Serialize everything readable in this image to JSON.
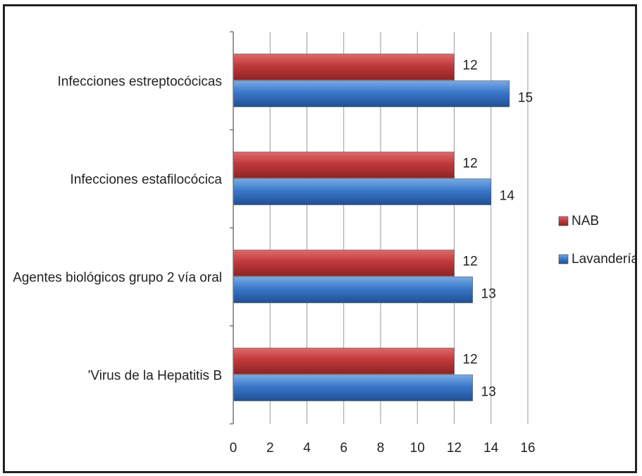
{
  "chart_data": {
    "type": "bar",
    "orientation": "horizontal",
    "categories": [
      "Infecciones estreptocócicas",
      "Infecciones estafilocócica",
      "Agentes biológicos grupo 2 vía oral",
      "'Virus de la Hepatitis B"
    ],
    "series": [
      {
        "name": "NAB",
        "values": [
          12,
          12,
          12,
          12
        ],
        "color": "#c0393b"
      },
      {
        "name": "Lavandería",
        "values": [
          15,
          14,
          13,
          13
        ],
        "color": "#3a78c9"
      }
    ],
    "xlim": [
      0,
      16
    ],
    "xticks": [
      0,
      2,
      4,
      6,
      8,
      10,
      12,
      14,
      16
    ],
    "grid": true,
    "legend_position": "right",
    "title": "",
    "xlabel": "",
    "ylabel": ""
  }
}
